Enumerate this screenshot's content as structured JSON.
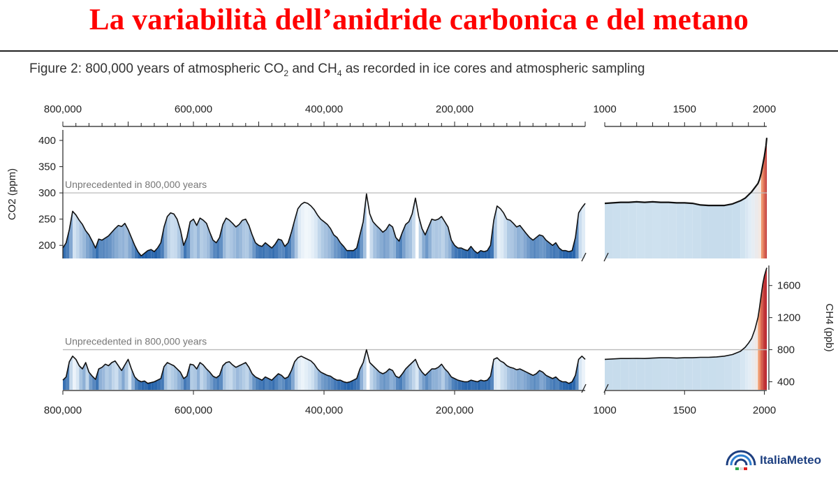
{
  "slide": {
    "title": "La variabilità dell’anidride carbonica e del metano"
  },
  "figure": {
    "caption_a": "Figure 2:  800,000 years of atmospheric CO",
    "caption_b": " and CH",
    "caption_c": "  as recorded in ice cores and atmospheric sampling",
    "sub_2": "2",
    "sub_4": "4"
  },
  "logo": {
    "text": "ItaliaMeteo",
    "icon": "arc-rings-icon"
  },
  "colors": {
    "line": "#111111",
    "threshold": "#bbbbbb",
    "cold": "#1f5ea8",
    "mid": "#dbe9f5",
    "warm": "#ffffff",
    "hot": "#b01020"
  },
  "chart_data": [
    {
      "type": "line",
      "panel": "co2-longterm",
      "xlabel_top_ticks": [
        "800,000",
        "600,000",
        "400,000",
        "200,000"
      ],
      "x_tick_values": [
        800000,
        600000,
        400000,
        200000
      ],
      "ylabel": "CO2 (ppm)",
      "ylim": [
        175,
        420
      ],
      "y_ticks": [
        200,
        250,
        300,
        350,
        400
      ],
      "threshold": {
        "value": 300,
        "label": "Unprecedented in 800,000 years"
      },
      "series": [
        {
          "x": [
            800000,
            795000,
            790000,
            785000,
            780000,
            775000,
            770000,
            765000,
            760000,
            755000,
            750000,
            745000,
            740000,
            735000,
            730000,
            725000,
            720000,
            715000,
            710000,
            705000,
            700000,
            695000,
            690000,
            685000,
            680000,
            675000,
            670000,
            665000,
            660000,
            655000,
            650000,
            645000,
            640000,
            635000,
            630000,
            625000,
            620000,
            615000,
            610000,
            605000,
            600000,
            595000,
            590000,
            585000,
            580000,
            575000,
            570000,
            565000,
            560000,
            555000,
            550000,
            545000,
            540000,
            535000,
            530000,
            525000,
            520000,
            515000,
            510000,
            505000,
            500000,
            495000,
            490000,
            485000,
            480000,
            475000,
            470000,
            465000,
            460000,
            455000,
            450000,
            445000,
            440000,
            435000,
            430000,
            425000,
            420000,
            415000,
            410000,
            405000,
            400000,
            395000,
            390000,
            385000,
            380000,
            375000,
            370000,
            365000,
            360000,
            355000,
            350000,
            345000,
            340000,
            335000,
            330000,
            325000,
            320000,
            315000,
            310000,
            305000,
            300000,
            295000,
            290000,
            285000,
            280000,
            275000,
            270000,
            265000,
            260000,
            255000,
            250000,
            245000,
            240000,
            235000,
            230000,
            225000,
            220000,
            215000,
            210000,
            205000,
            200000,
            195000,
            190000,
            185000,
            180000,
            175000,
            170000,
            165000,
            160000,
            155000,
            150000,
            145000,
            140000,
            135000,
            130000,
            125000,
            120000,
            115000,
            110000,
            105000,
            100000,
            95000,
            90000,
            85000,
            80000,
            75000,
            70000,
            65000,
            60000,
            55000,
            50000,
            45000,
            40000,
            35000,
            30000,
            25000,
            20000,
            15000,
            10000,
            5000,
            0
          ],
          "values": [
            195,
            205,
            230,
            265,
            258,
            248,
            240,
            228,
            220,
            208,
            195,
            212,
            210,
            214,
            218,
            225,
            232,
            238,
            236,
            242,
            230,
            215,
            200,
            188,
            180,
            185,
            190,
            192,
            188,
            195,
            205,
            235,
            255,
            262,
            260,
            250,
            230,
            200,
            215,
            245,
            250,
            238,
            252,
            248,
            242,
            225,
            210,
            205,
            215,
            240,
            252,
            248,
            242,
            235,
            240,
            248,
            250,
            238,
            220,
            205,
            200,
            198,
            205,
            200,
            195,
            202,
            212,
            210,
            198,
            205,
            225,
            248,
            270,
            278,
            282,
            280,
            275,
            268,
            258,
            250,
            245,
            240,
            232,
            220,
            215,
            205,
            198,
            190,
            190,
            190,
            195,
            220,
            245,
            298,
            260,
            245,
            238,
            232,
            225,
            230,
            240,
            235,
            215,
            208,
            225,
            240,
            245,
            260,
            290,
            255,
            232,
            220,
            235,
            250,
            248,
            250,
            255,
            245,
            235,
            210,
            200,
            195,
            195,
            192,
            190,
            198,
            190,
            185,
            190,
            188,
            190,
            200,
            248,
            275,
            270,
            262,
            250,
            248,
            242,
            235,
            238,
            230,
            222,
            215,
            210,
            215,
            220,
            218,
            210,
            205,
            200,
            205,
            195,
            190,
            190,
            188,
            190,
            215,
            262,
            272,
            280
          ]
        }
      ]
    },
    {
      "type": "line",
      "panel": "co2-recent",
      "x_ticks": [
        1000,
        1500,
        2000
      ],
      "ylim": [
        175,
        420
      ],
      "series": [
        {
          "x": [
            1000,
            1050,
            1100,
            1150,
            1200,
            1250,
            1300,
            1350,
            1400,
            1450,
            1500,
            1550,
            1600,
            1650,
            1700,
            1750,
            1800,
            1850,
            1880,
            1900,
            1920,
            1940,
            1960,
            1970,
            1980,
            1990,
            2000,
            2010,
            2015
          ],
          "values": [
            280,
            281,
            282,
            282,
            283,
            282,
            283,
            282,
            282,
            281,
            281,
            280,
            277,
            276,
            276,
            276,
            279,
            285,
            290,
            296,
            302,
            310,
            318,
            326,
            338,
            354,
            370,
            390,
            405
          ]
        }
      ]
    },
    {
      "type": "line",
      "panel": "ch4-longterm",
      "xlabel_bottom_ticks": [
        "800,000",
        "600,000",
        "400,000",
        "200,000"
      ],
      "x_tick_values": [
        800000,
        600000,
        400000,
        200000
      ],
      "ylim": [
        300,
        1850
      ],
      "threshold": {
        "value": 800,
        "label": "Unprecedented in 800,000 years"
      },
      "series": [
        {
          "x": [
            800000,
            795000,
            790000,
            785000,
            780000,
            775000,
            770000,
            765000,
            760000,
            755000,
            750000,
            745000,
            740000,
            735000,
            730000,
            725000,
            720000,
            715000,
            710000,
            705000,
            700000,
            695000,
            690000,
            685000,
            680000,
            675000,
            670000,
            665000,
            660000,
            655000,
            650000,
            645000,
            640000,
            635000,
            630000,
            625000,
            620000,
            615000,
            610000,
            605000,
            600000,
            595000,
            590000,
            585000,
            580000,
            575000,
            570000,
            565000,
            560000,
            555000,
            550000,
            545000,
            540000,
            535000,
            530000,
            525000,
            520000,
            515000,
            510000,
            505000,
            500000,
            495000,
            490000,
            485000,
            480000,
            475000,
            470000,
            465000,
            460000,
            455000,
            450000,
            445000,
            440000,
            435000,
            430000,
            425000,
            420000,
            415000,
            410000,
            405000,
            400000,
            395000,
            390000,
            385000,
            380000,
            375000,
            370000,
            365000,
            360000,
            355000,
            350000,
            345000,
            340000,
            335000,
            330000,
            325000,
            320000,
            315000,
            310000,
            305000,
            300000,
            295000,
            290000,
            285000,
            280000,
            275000,
            270000,
            265000,
            260000,
            255000,
            250000,
            245000,
            240000,
            235000,
            230000,
            225000,
            220000,
            215000,
            210000,
            205000,
            200000,
            195000,
            190000,
            185000,
            180000,
            175000,
            170000,
            165000,
            160000,
            155000,
            150000,
            145000,
            140000,
            135000,
            130000,
            125000,
            120000,
            115000,
            110000,
            105000,
            100000,
            95000,
            90000,
            85000,
            80000,
            75000,
            70000,
            65000,
            60000,
            55000,
            50000,
            45000,
            40000,
            35000,
            30000,
            25000,
            20000,
            15000,
            10000,
            5000,
            0
          ],
          "values": [
            420,
            460,
            650,
            720,
            680,
            600,
            560,
            640,
            520,
            470,
            430,
            560,
            580,
            620,
            600,
            640,
            660,
            600,
            540,
            610,
            680,
            560,
            460,
            420,
            400,
            410,
            380,
            390,
            400,
            420,
            440,
            590,
            640,
            620,
            600,
            560,
            520,
            440,
            470,
            620,
            610,
            560,
            640,
            610,
            560,
            520,
            470,
            450,
            480,
            600,
            640,
            650,
            610,
            580,
            600,
            620,
            640,
            580,
            500,
            460,
            440,
            420,
            460,
            440,
            420,
            460,
            500,
            480,
            440,
            460,
            540,
            650,
            700,
            720,
            700,
            680,
            660,
            620,
            560,
            520,
            500,
            480,
            470,
            440,
            420,
            420,
            400,
            390,
            400,
            420,
            440,
            560,
            640,
            800,
            640,
            600,
            560,
            520,
            500,
            520,
            560,
            540,
            470,
            450,
            500,
            560,
            600,
            640,
            680,
            580,
            520,
            480,
            520,
            560,
            560,
            580,
            620,
            560,
            520,
            460,
            440,
            420,
            410,
            400,
            400,
            420,
            410,
            400,
            420,
            410,
            420,
            470,
            680,
            700,
            660,
            640,
            600,
            580,
            570,
            550,
            560,
            540,
            520,
            500,
            480,
            500,
            540,
            520,
            480,
            460,
            440,
            460,
            420,
            400,
            400,
            380,
            400,
            480,
            680,
            720,
            680
          ]
        }
      ]
    },
    {
      "type": "line",
      "panel": "ch4-recent",
      "xlabel_bottom_ticks": [
        "1000",
        "1500",
        "2000"
      ],
      "x_ticks": [
        1000,
        1500,
        2000
      ],
      "ylabel": "CH4 (ppb)",
      "ylim": [
        300,
        1850
      ],
      "y_ticks": [
        400,
        800,
        1200,
        1600
      ],
      "series": [
        {
          "x": [
            1000,
            1050,
            1100,
            1150,
            1200,
            1250,
            1300,
            1350,
            1400,
            1450,
            1500,
            1550,
            1600,
            1650,
            1700,
            1750,
            1800,
            1850,
            1880,
            1900,
            1920,
            1940,
            1960,
            1970,
            1980,
            1990,
            2000,
            2010,
            2015
          ],
          "values": [
            680,
            685,
            690,
            690,
            692,
            690,
            695,
            700,
            700,
            695,
            700,
            700,
            705,
            705,
            710,
            720,
            740,
            780,
            830,
            880,
            940,
            1050,
            1200,
            1330,
            1480,
            1620,
            1720,
            1790,
            1820
          ]
        }
      ]
    }
  ]
}
